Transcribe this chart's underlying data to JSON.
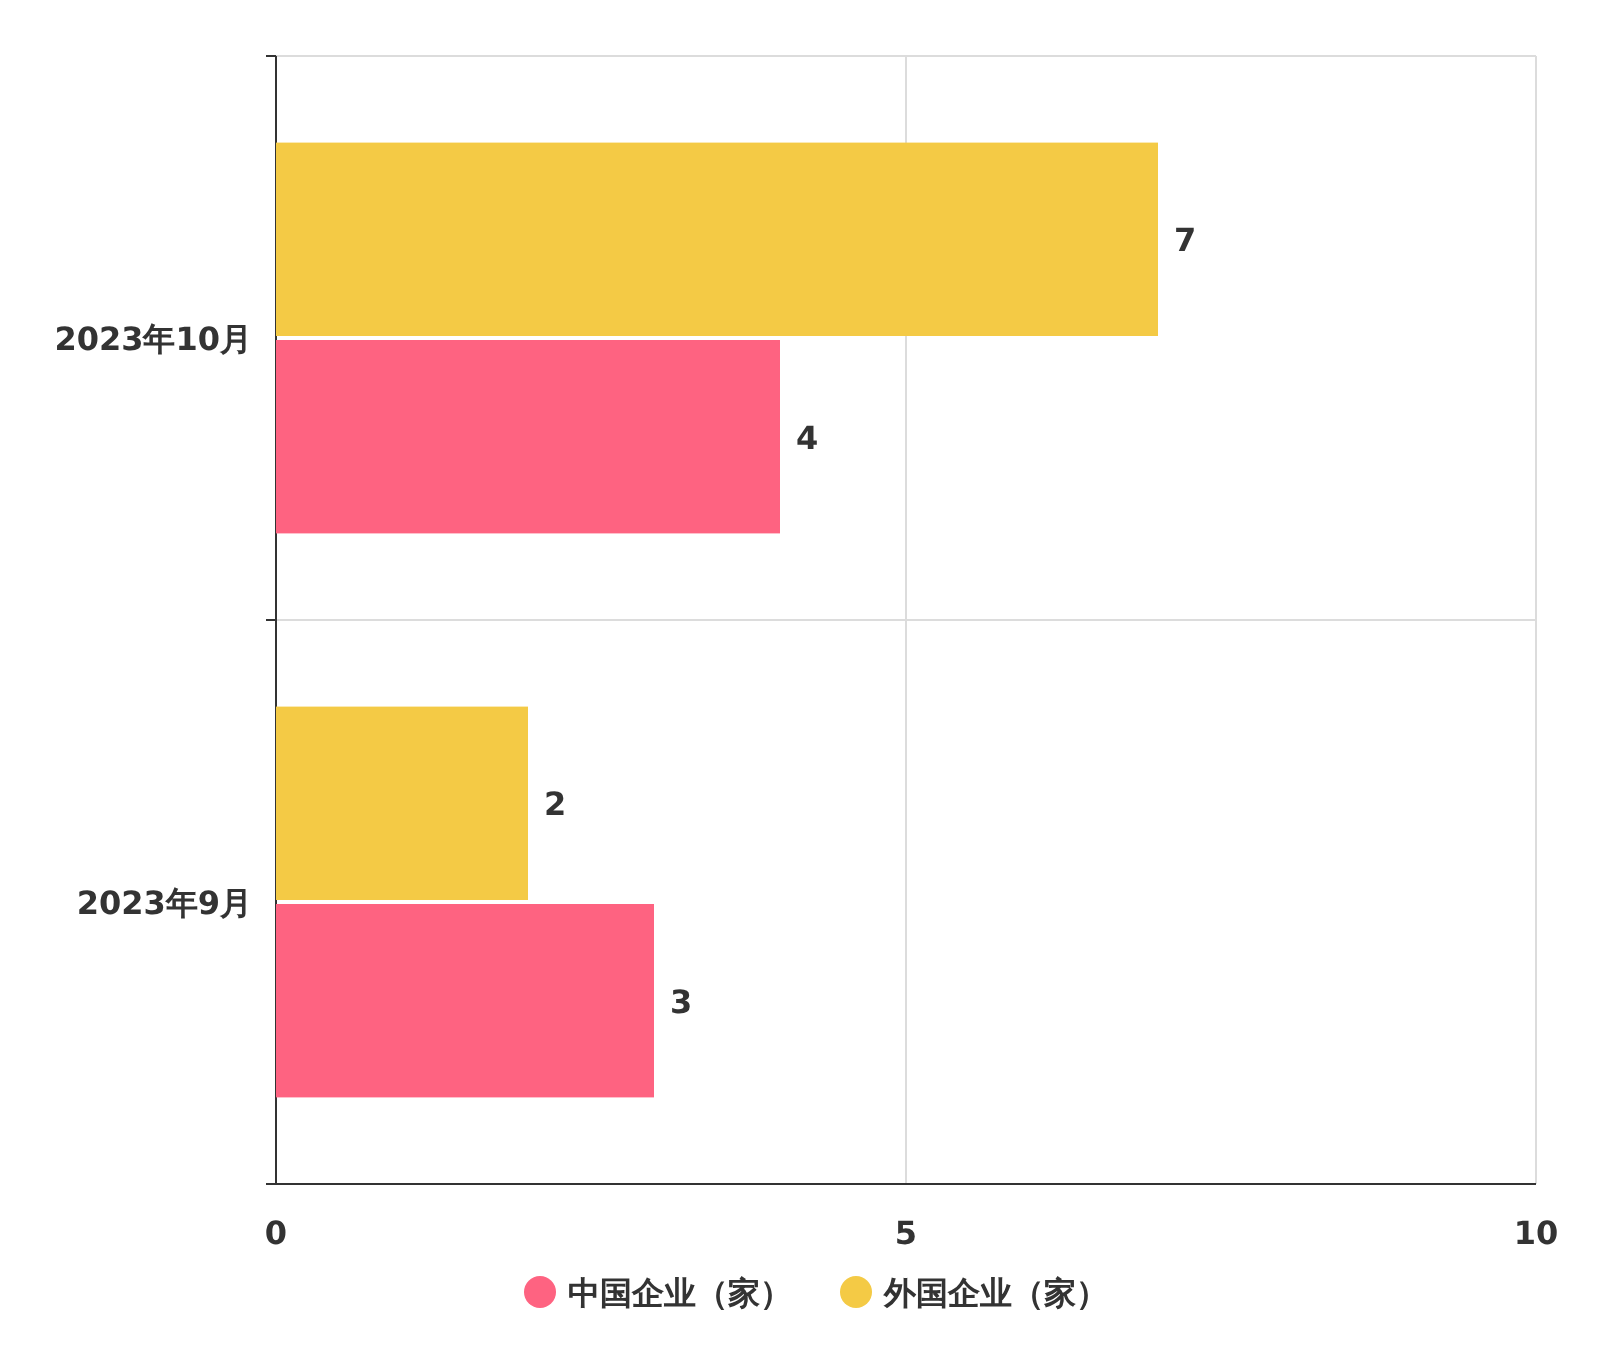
{
  "chart_data": {
    "type": "bar",
    "orientation": "horizontal",
    "categories": [
      "2023年10月",
      "2023年9月"
    ],
    "series": [
      {
        "name": "中国企业（家）",
        "color": "#fe6381",
        "values": [
          4,
          3
        ]
      },
      {
        "name": "外国企业（家）",
        "color": "#f4ca45",
        "values": [
          7,
          2
        ]
      }
    ],
    "xlim": [
      0,
      10
    ],
    "xticks": [
      0,
      5,
      10
    ],
    "data_labels": true,
    "grid": true,
    "legend": "bottom"
  }
}
